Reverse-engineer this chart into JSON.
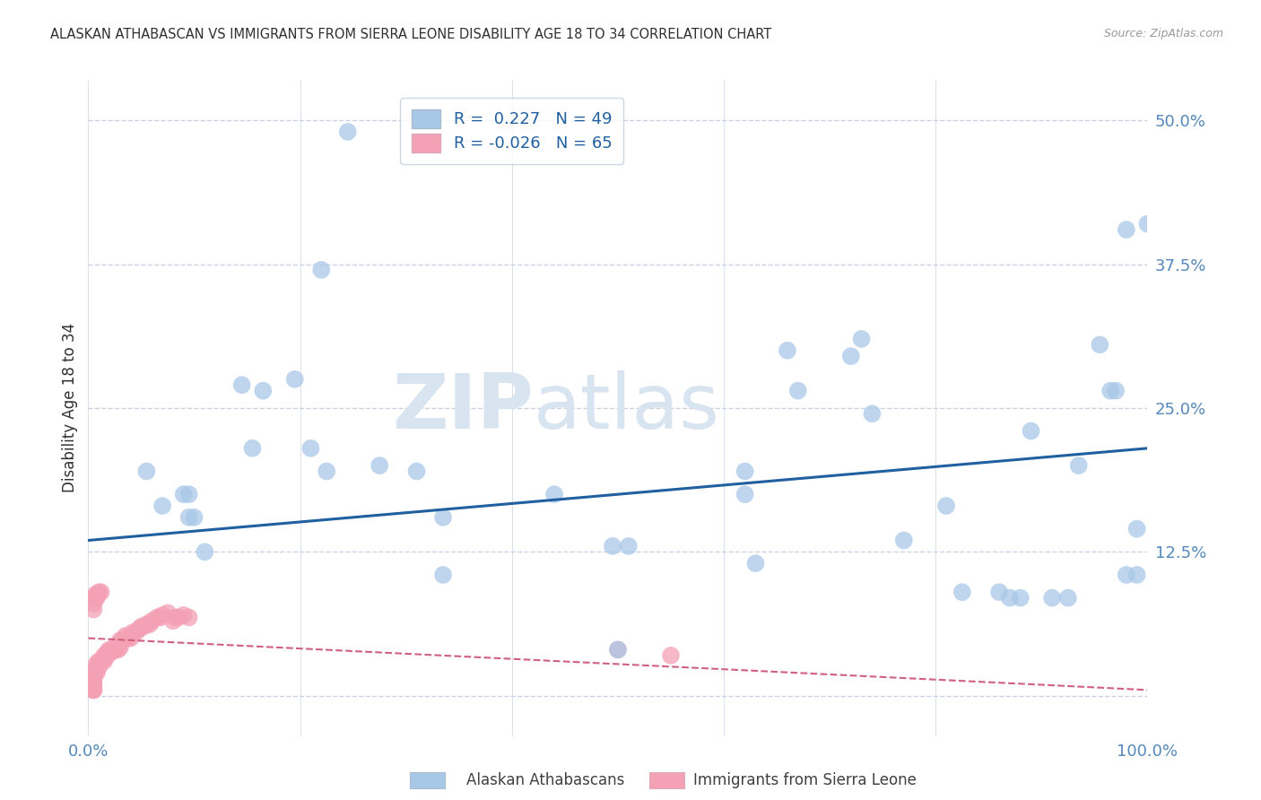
{
  "title": "ALASKAN ATHABASCAN VS IMMIGRANTS FROM SIERRA LEONE DISABILITY AGE 18 TO 34 CORRELATION CHART",
  "source": "Source: ZipAtlas.com",
  "ylabel": "Disability Age 18 to 34",
  "watermark_zip": "ZIP",
  "watermark_atlas": "atlas",
  "legend_blue_r": "R =  0.227",
  "legend_blue_n": "N = 49",
  "legend_pink_r": "R = -0.026",
  "legend_pink_n": "N = 65",
  "xlim": [
    0.0,
    1.0
  ],
  "ylim": [
    -0.035,
    0.535
  ],
  "yticks": [
    0.0,
    0.125,
    0.25,
    0.375,
    0.5
  ],
  "xticks": [
    0.0,
    0.2,
    0.4,
    0.6,
    0.8,
    1.0
  ],
  "blue_scatter_x": [
    0.245,
    0.22,
    0.145,
    0.165,
    0.195,
    0.21,
    0.225,
    0.055,
    0.07,
    0.09,
    0.095,
    0.1,
    0.11,
    0.155,
    0.275,
    0.31,
    0.335,
    0.335,
    0.44,
    0.62,
    0.63,
    0.66,
    0.67,
    0.72,
    0.73,
    0.74,
    0.77,
    0.81,
    0.825,
    0.86,
    0.87,
    0.88,
    0.89,
    0.91,
    0.925,
    0.935,
    0.955,
    0.965,
    0.97,
    0.98,
    0.98,
    0.99,
    0.99,
    1.0,
    0.51,
    0.5,
    0.495,
    0.62,
    0.095
  ],
  "blue_scatter_y": [
    0.49,
    0.37,
    0.27,
    0.265,
    0.275,
    0.215,
    0.195,
    0.195,
    0.165,
    0.175,
    0.175,
    0.155,
    0.125,
    0.215,
    0.2,
    0.195,
    0.155,
    0.105,
    0.175,
    0.195,
    0.115,
    0.3,
    0.265,
    0.295,
    0.31,
    0.245,
    0.135,
    0.165,
    0.09,
    0.09,
    0.085,
    0.085,
    0.23,
    0.085,
    0.085,
    0.2,
    0.305,
    0.265,
    0.265,
    0.405,
    0.105,
    0.105,
    0.145,
    0.41,
    0.13,
    0.04,
    0.13,
    0.175,
    0.155
  ],
  "pink_scatter_x": [
    0.005,
    0.005,
    0.005,
    0.005,
    0.005,
    0.005,
    0.005,
    0.005,
    0.005,
    0.005,
    0.005,
    0.008,
    0.008,
    0.008,
    0.008,
    0.01,
    0.01,
    0.012,
    0.015,
    0.015,
    0.015,
    0.018,
    0.018,
    0.02,
    0.02,
    0.022,
    0.025,
    0.025,
    0.028,
    0.03,
    0.03,
    0.03,
    0.032,
    0.035,
    0.035,
    0.038,
    0.04,
    0.042,
    0.045,
    0.048,
    0.05,
    0.052,
    0.055,
    0.058,
    0.06,
    0.065,
    0.068,
    0.07,
    0.075,
    0.08,
    0.082,
    0.085,
    0.09,
    0.095,
    0.5,
    0.55,
    0.005,
    0.005,
    0.005,
    0.006,
    0.007,
    0.008,
    0.009,
    0.01,
    0.012
  ],
  "pink_scatter_y": [
    0.005,
    0.005,
    0.005,
    0.006,
    0.007,
    0.008,
    0.01,
    0.012,
    0.015,
    0.018,
    0.02,
    0.02,
    0.022,
    0.025,
    0.028,
    0.025,
    0.03,
    0.03,
    0.03,
    0.032,
    0.035,
    0.035,
    0.038,
    0.038,
    0.04,
    0.038,
    0.04,
    0.042,
    0.04,
    0.042,
    0.045,
    0.048,
    0.048,
    0.05,
    0.052,
    0.05,
    0.05,
    0.055,
    0.055,
    0.058,
    0.06,
    0.06,
    0.062,
    0.062,
    0.065,
    0.068,
    0.068,
    0.07,
    0.072,
    0.065,
    0.068,
    0.068,
    0.07,
    0.068,
    0.04,
    0.035,
    0.075,
    0.08,
    0.085,
    0.085,
    0.088,
    0.085,
    0.088,
    0.09,
    0.09
  ],
  "blue_line_x": [
    0.0,
    1.0
  ],
  "blue_line_y": [
    0.135,
    0.215
  ],
  "pink_line_x": [
    0.0,
    1.0
  ],
  "pink_line_y": [
    0.05,
    0.005
  ],
  "blue_color": "#a8c8e8",
  "pink_color": "#f4a0b5",
  "blue_line_color": "#2060a0",
  "pink_line_color": "#d06080",
  "grid_color": "#c8d4e4",
  "bg_color": "#ffffff",
  "title_color": "#303030",
  "axis_label_color": "#303030",
  "tick_color": "#5588bb",
  "watermark_color": "#d8e4f0",
  "legend_text_color": "#2060a0",
  "legend_edge_color": "#c0ccd8",
  "bottom_label_color_blue": "#90b8d8",
  "bottom_label_color_pink": "#f0a0b8"
}
